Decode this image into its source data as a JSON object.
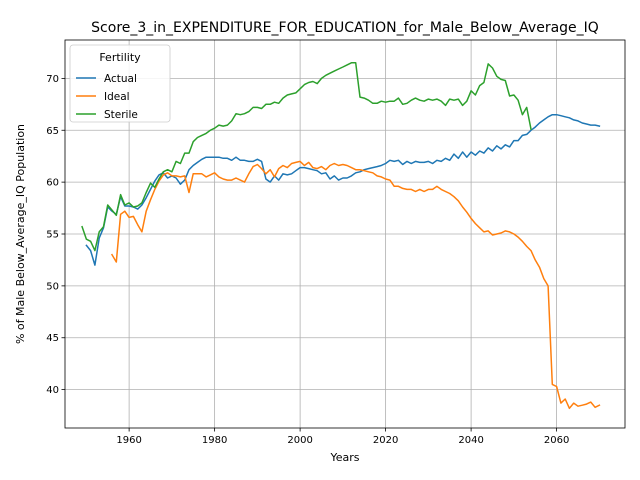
{
  "chart_data": {
    "type": "line",
    "title": "Score_3_in_EXPENDITURE_FOR_EDUCATION_for_Male_Below_Average_IQ",
    "xlabel": "Years",
    "ylabel": "% of Male Below_Average_IQ Population",
    "xlim": [
      1945,
      2076
    ],
    "ylim": [
      36.3,
      73.7
    ],
    "xticks": [
      1960,
      1980,
      2000,
      2020,
      2040,
      2060
    ],
    "yticks": [
      40,
      45,
      50,
      55,
      60,
      65,
      70
    ],
    "grid": true,
    "legend": {
      "title": "Fertility",
      "placement": "top-left"
    },
    "series": [
      {
        "name": "Actual",
        "color": "#1f77b4",
        "x": [
          1950,
          1951,
          1952,
          1953,
          1954,
          1955,
          1956,
          1957,
          1958,
          1959,
          1960,
          1961,
          1962,
          1963,
          1964,
          1965,
          1966,
          1967,
          1968,
          1969,
          1970,
          1971,
          1972,
          1973,
          1974,
          1975,
          1976,
          1977,
          1978,
          1979,
          1980,
          1981,
          1982,
          1983,
          1984,
          1985,
          1986,
          1987,
          1988,
          1989,
          1990,
          1991,
          1992,
          1993,
          1994,
          1995,
          1996,
          1997,
          1998,
          1999,
          2000,
          2001,
          2002,
          2003,
          2004,
          2005,
          2006,
          2007,
          2008,
          2009,
          2010,
          2011,
          2012,
          2013,
          2014,
          2015,
          2016,
          2017,
          2018,
          2019,
          2020,
          2021,
          2022,
          2023,
          2024,
          2025,
          2026,
          2027,
          2028,
          2029,
          2030,
          2031,
          2032,
          2033,
          2034,
          2035,
          2036,
          2037,
          2038,
          2039,
          2040,
          2041,
          2042,
          2043,
          2044,
          2045,
          2046,
          2047,
          2048,
          2049,
          2050,
          2051,
          2052,
          2053,
          2054,
          2055,
          2056,
          2057,
          2058,
          2059,
          2060,
          2061,
          2062,
          2063,
          2064,
          2065,
          2066,
          2067,
          2068,
          2069,
          2070
        ],
        "y": [
          53.9,
          53.4,
          52.0,
          54.6,
          55.6,
          57.6,
          57.2,
          56.9,
          58.6,
          57.7,
          57.7,
          57.6,
          57.4,
          57.8,
          58.5,
          59.3,
          60.1,
          60.7,
          60.9,
          60.4,
          60.6,
          60.4,
          59.8,
          60.2,
          61.2,
          61.6,
          61.9,
          62.2,
          62.4,
          62.4,
          62.4,
          62.4,
          62.3,
          62.3,
          62.1,
          62.4,
          62.1,
          62.1,
          62.0,
          62.0,
          62.2,
          62.0,
          60.3,
          60.0,
          60.6,
          60.2,
          60.8,
          60.7,
          60.8,
          61.1,
          61.4,
          61.4,
          61.3,
          61.2,
          61.1,
          60.8,
          60.9,
          60.3,
          60.6,
          60.2,
          60.4,
          60.4,
          60.6,
          60.9,
          61.0,
          61.2,
          61.3,
          61.4,
          61.5,
          61.6,
          61.8,
          62.1,
          62.0,
          62.1,
          61.7,
          62.0,
          61.8,
          62.0,
          61.9,
          61.9,
          62.0,
          61.8,
          62.1,
          62.0,
          62.3,
          62.1,
          62.7,
          62.3,
          62.9,
          62.4,
          62.9,
          62.6,
          63.0,
          62.8,
          63.3,
          63.0,
          63.5,
          63.2,
          63.6,
          63.4,
          64.0,
          64.0,
          64.5,
          64.6,
          65.0,
          65.3,
          65.7,
          66.0,
          66.3,
          66.5,
          66.5,
          66.4,
          66.3,
          66.2,
          66.0,
          65.9,
          65.7,
          65.6,
          65.5,
          65.5,
          65.4
        ]
      },
      {
        "name": "Ideal",
        "color": "#ff7f0e",
        "x": [
          1956,
          1957,
          1958,
          1959,
          1960,
          1961,
          1962,
          1963,
          1964,
          1965,
          1966,
          1967,
          1968,
          1969,
          1970,
          1971,
          1972,
          1973,
          1974,
          1975,
          1976,
          1977,
          1978,
          1979,
          1980,
          1981,
          1982,
          1983,
          1984,
          1985,
          1986,
          1987,
          1988,
          1989,
          1990,
          1991,
          1992,
          1993,
          1994,
          1995,
          1996,
          1997,
          1998,
          1999,
          2000,
          2001,
          2002,
          2003,
          2004,
          2005,
          2006,
          2007,
          2008,
          2009,
          2010,
          2011,
          2012,
          2013,
          2014,
          2015,
          2016,
          2017,
          2018,
          2019,
          2020,
          2021,
          2022,
          2023,
          2024,
          2025,
          2026,
          2027,
          2028,
          2029,
          2030,
          2031,
          2032,
          2033,
          2034,
          2035,
          2036,
          2037,
          2038,
          2039,
          2040,
          2041,
          2042,
          2043,
          2044,
          2045,
          2046,
          2047,
          2048,
          2049,
          2050,
          2051,
          2052,
          2053,
          2054,
          2055,
          2056,
          2057,
          2058,
          2059,
          2060,
          2061,
          2062,
          2063,
          2064,
          2065,
          2066,
          2067,
          2068,
          2069,
          2070
        ],
        "y": [
          53.0,
          52.3,
          56.9,
          57.2,
          56.6,
          56.7,
          55.9,
          55.2,
          57.2,
          58.3,
          59.3,
          60.1,
          60.7,
          60.9,
          60.6,
          60.6,
          60.5,
          60.6,
          59.0,
          60.8,
          60.8,
          60.8,
          60.5,
          60.7,
          60.9,
          60.5,
          60.3,
          60.2,
          60.2,
          60.4,
          60.2,
          60.0,
          60.8,
          61.5,
          61.7,
          61.3,
          60.8,
          61.2,
          60.5,
          61.3,
          61.6,
          61.4,
          61.8,
          61.9,
          62.0,
          61.6,
          61.9,
          61.4,
          61.3,
          61.5,
          61.2,
          61.6,
          61.8,
          61.6,
          61.7,
          61.6,
          61.4,
          61.2,
          61.2,
          61.1,
          61.0,
          60.9,
          60.6,
          60.5,
          60.3,
          60.2,
          59.6,
          59.6,
          59.4,
          59.3,
          59.3,
          59.1,
          59.3,
          59.1,
          59.3,
          59.3,
          59.6,
          59.3,
          59.1,
          58.9,
          58.6,
          58.2,
          57.6,
          57.1,
          56.5,
          56.0,
          55.6,
          55.2,
          55.3,
          54.9,
          55.0,
          55.1,
          55.3,
          55.2,
          55.0,
          54.7,
          54.3,
          53.8,
          53.4,
          52.5,
          51.8,
          50.7,
          50.0,
          40.5,
          40.3,
          38.7,
          39.1,
          38.2,
          38.7,
          38.4,
          38.5,
          38.6,
          38.8,
          38.3,
          38.5
        ]
      },
      {
        "name": "Sterile",
        "color": "#2ca02c",
        "x": [
          1949,
          1950,
          1951,
          1952,
          1953,
          1954,
          1955,
          1956,
          1957,
          1958,
          1959,
          1960,
          1961,
          1962,
          1963,
          1964,
          1965,
          1966,
          1967,
          1968,
          1969,
          1970,
          1971,
          1972,
          1973,
          1974,
          1975,
          1976,
          1977,
          1978,
          1979,
          1980,
          1981,
          1982,
          1983,
          1984,
          1985,
          1986,
          1987,
          1988,
          1989,
          1990,
          1991,
          1992,
          1993,
          1994,
          1995,
          1996,
          1997,
          1998,
          1999,
          2000,
          2001,
          2002,
          2003,
          2004,
          2005,
          2006,
          2007,
          2008,
          2009,
          2010,
          2011,
          2012,
          2013,
          2014,
          2015,
          2016,
          2017,
          2018,
          2019,
          2020,
          2021,
          2022,
          2023,
          2024,
          2025,
          2026,
          2027,
          2028,
          2029,
          2030,
          2031,
          2032,
          2033,
          2034,
          2035,
          2036,
          2037,
          2038,
          2039,
          2040,
          2041,
          2042,
          2043,
          2044,
          2045,
          2046,
          2047,
          2048,
          2049,
          2050,
          2051,
          2052,
          2053,
          2054
        ],
        "y": [
          55.7,
          54.5,
          54.3,
          53.4,
          55.2,
          55.7,
          57.8,
          57.3,
          56.8,
          58.8,
          57.8,
          58.0,
          57.6,
          57.7,
          58.0,
          59.0,
          59.9,
          59.5,
          60.3,
          61.0,
          61.2,
          61.0,
          62.0,
          61.8,
          62.8,
          62.8,
          63.9,
          64.3,
          64.5,
          64.7,
          65.0,
          65.2,
          65.5,
          65.4,
          65.5,
          65.9,
          66.6,
          66.5,
          66.6,
          66.8,
          67.2,
          67.2,
          67.1,
          67.5,
          67.5,
          67.7,
          67.6,
          68.1,
          68.4,
          68.5,
          68.6,
          69.0,
          69.4,
          69.6,
          69.7,
          69.5,
          70.0,
          70.3,
          70.5,
          70.7,
          70.9,
          71.1,
          71.3,
          71.5,
          71.5,
          68.2,
          68.1,
          67.9,
          67.6,
          67.6,
          67.8,
          67.7,
          67.8,
          67.8,
          68.1,
          67.5,
          67.6,
          67.9,
          68.1,
          67.9,
          67.8,
          68.0,
          67.9,
          68.0,
          67.8,
          67.4,
          68.0,
          67.9,
          68.0,
          67.4,
          67.8,
          68.8,
          68.4,
          69.3,
          69.6,
          71.4,
          71.0,
          70.2,
          69.9,
          69.8,
          68.3,
          68.4,
          67.9,
          66.5,
          67.2,
          65.1
        ]
      }
    ]
  }
}
